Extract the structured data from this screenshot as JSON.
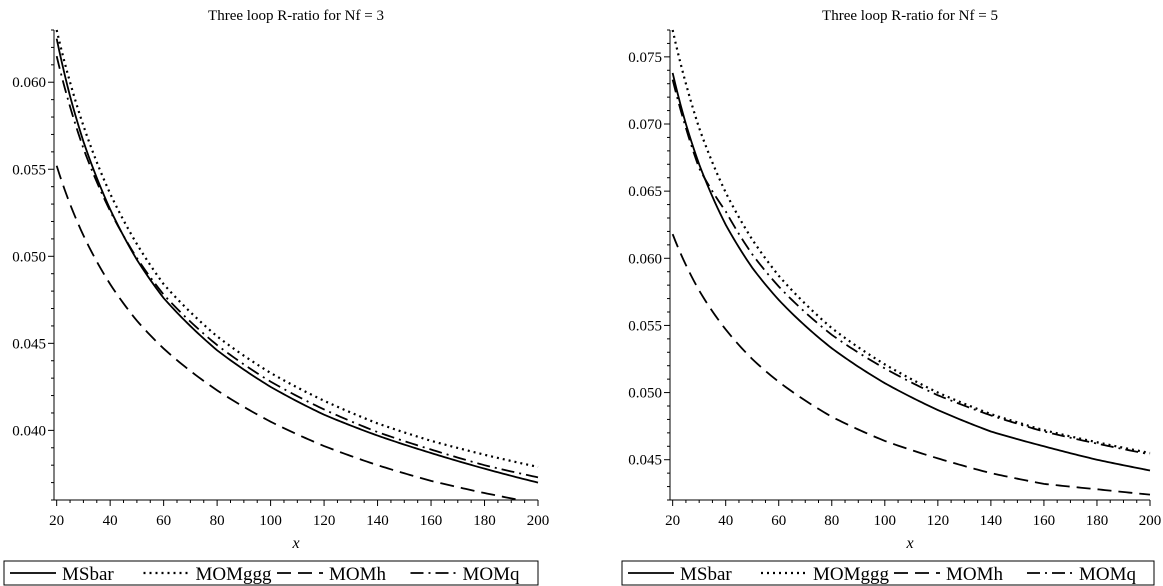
{
  "chart_data": [
    {
      "type": "line",
      "title": "Three loop R-ratio for Nf = 3",
      "xlabel": "x",
      "ylabel": "",
      "xlim": [
        19,
        200
      ],
      "ylim": [
        0.036,
        0.063
      ],
      "xticks": [
        20,
        40,
        60,
        80,
        100,
        120,
        140,
        160,
        180,
        200
      ],
      "xtick_labels": [
        "20",
        "40",
        "60",
        "80",
        "100",
        "120",
        "140",
        "160",
        "180",
        "200"
      ],
      "yticks": [
        0.04,
        0.045,
        0.05,
        0.055,
        0.06
      ],
      "ytick_labels": [
        "0.040",
        "0.045",
        "0.050",
        "0.055",
        "0.060"
      ],
      "grid": false,
      "legend_position": "bottom",
      "series": [
        {
          "name": "MSbar",
          "dash": "solid",
          "x": [
            20,
            25,
            30,
            40,
            50,
            60,
            80,
            100,
            120,
            140,
            160,
            180,
            200
          ],
          "y": [
            0.0625,
            0.0592,
            0.0566,
            0.0527,
            0.0498,
            0.0476,
            0.0446,
            0.0425,
            0.0409,
            0.0397,
            0.0387,
            0.0378,
            0.037
          ]
        },
        {
          "name": "MOMggg",
          "dash": "dot",
          "x": [
            20,
            25,
            30,
            40,
            50,
            60,
            80,
            100,
            120,
            140,
            160,
            180,
            200
          ],
          "y": [
            0.063,
            0.06,
            0.0575,
            0.0536,
            0.0507,
            0.0484,
            0.0454,
            0.0433,
            0.0417,
            0.0404,
            0.0394,
            0.0386,
            0.0379
          ]
        },
        {
          "name": "MOMh",
          "dash": "dash",
          "x": [
            20,
            25,
            30,
            40,
            50,
            60,
            80,
            100,
            120,
            140,
            160,
            180,
            200
          ],
          "y": [
            0.0552,
            0.053,
            0.0512,
            0.0484,
            0.0463,
            0.0447,
            0.0423,
            0.0405,
            0.0391,
            0.038,
            0.0371,
            0.0364,
            0.0358
          ]
        },
        {
          "name": "MOMq",
          "dash": "dashdot",
          "x": [
            20,
            25,
            30,
            40,
            50,
            60,
            80,
            100,
            120,
            140,
            160,
            180,
            200
          ],
          "y": [
            0.0615,
            0.0586,
            0.0562,
            0.0526,
            0.0499,
            0.0478,
            0.0449,
            0.0428,
            0.0412,
            0.0399,
            0.0389,
            0.038,
            0.0373
          ]
        }
      ]
    },
    {
      "type": "line",
      "title": "Three loop R-ratio for Nf = 5",
      "xlabel": "x",
      "ylabel": "",
      "xlim": [
        19,
        200
      ],
      "ylim": [
        0.042,
        0.077
      ],
      "xticks": [
        20,
        40,
        60,
        80,
        100,
        120,
        140,
        160,
        180,
        200
      ],
      "xtick_labels": [
        "20",
        "40",
        "60",
        "80",
        "100",
        "120",
        "140",
        "160",
        "180",
        "200"
      ],
      "yticks": [
        0.045,
        0.05,
        0.055,
        0.06,
        0.065,
        0.07,
        0.075
      ],
      "ytick_labels": [
        "0.045",
        "0.050",
        "0.055",
        "0.060",
        "0.065",
        "0.070",
        "0.075"
      ],
      "grid": false,
      "legend_position": "bottom",
      "series": [
        {
          "name": "MSbar",
          "dash": "solid",
          "x": [
            20,
            25,
            30,
            40,
            50,
            60,
            80,
            100,
            120,
            140,
            160,
            180,
            200
          ],
          "y": [
            0.0738,
            0.07,
            0.067,
            0.0625,
            0.0593,
            0.0569,
            0.0533,
            0.0507,
            0.0487,
            0.0471,
            0.046,
            0.045,
            0.0442
          ]
        },
        {
          "name": "MOMggg",
          "dash": "dot",
          "x": [
            20,
            25,
            30,
            40,
            50,
            60,
            80,
            100,
            120,
            140,
            160,
            180,
            200
          ],
          "y": [
            0.077,
            0.073,
            0.0697,
            0.0649,
            0.0614,
            0.0587,
            0.0548,
            0.0521,
            0.05,
            0.0484,
            0.0472,
            0.0463,
            0.0455
          ]
        },
        {
          "name": "MOMh",
          "dash": "dash",
          "x": [
            20,
            25,
            30,
            40,
            50,
            60,
            80,
            100,
            120,
            140,
            160,
            180,
            200
          ],
          "y": [
            0.0618,
            0.0595,
            0.0576,
            0.0547,
            0.0525,
            0.0508,
            0.0482,
            0.0464,
            0.0451,
            0.044,
            0.0432,
            0.0428,
            0.0424
          ]
        },
        {
          "name": "MOMq",
          "dash": "dashdot",
          "x": [
            20,
            25,
            30,
            40,
            50,
            60,
            80,
            100,
            120,
            140,
            160,
            180,
            200
          ],
          "y": [
            0.0733,
            0.0697,
            0.0667,
            0.0635,
            0.0603,
            0.0579,
            0.0543,
            0.0518,
            0.0498,
            0.0483,
            0.0471,
            0.0462,
            0.0454
          ]
        }
      ]
    }
  ]
}
